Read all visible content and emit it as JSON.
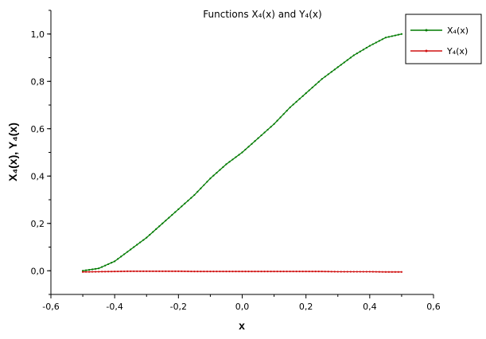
{
  "chart_data": {
    "type": "line",
    "title": "Functions X₄(x) and Y₄(x)",
    "xlabel": "x",
    "ylabel": "X₄(x), Y₄(x)",
    "xlim": [
      -0.6,
      0.6
    ],
    "ylim": [
      -0.1,
      1.1
    ],
    "xticks": [
      -0.6,
      -0.4,
      -0.2,
      0.0,
      0.2,
      0.4,
      0.6
    ],
    "xtick_labels": [
      "-0,6",
      "-0,4",
      "-0,2",
      "0,0",
      "0,2",
      "0,4",
      "0,6"
    ],
    "yticks": [
      0.0,
      0.2,
      0.4,
      0.6,
      0.8,
      1.0
    ],
    "ytick_labels": [
      "0,0",
      "0,2",
      "0,4",
      "0,6",
      "0,8",
      "1,0"
    ],
    "grid": false,
    "legend_position": "top-right",
    "x": [
      -0.5,
      -0.45,
      -0.4,
      -0.35,
      -0.3,
      -0.25,
      -0.2,
      -0.15,
      -0.1,
      -0.05,
      0.0,
      0.05,
      0.1,
      0.15,
      0.2,
      0.25,
      0.3,
      0.35,
      0.4,
      0.45,
      0.5
    ],
    "series": [
      {
        "name": "X₄(x)",
        "color": "#007a00",
        "values": [
          0.0,
          0.01,
          0.04,
          0.09,
          0.14,
          0.2,
          0.26,
          0.32,
          0.39,
          0.45,
          0.5,
          0.56,
          0.62,
          0.69,
          0.75,
          0.81,
          0.86,
          0.91,
          0.95,
          0.985,
          1.0
        ]
      },
      {
        "name": "Y₄(x)",
        "color": "#d01010",
        "values": [
          -0.005,
          -0.004,
          -0.003,
          -0.002,
          -0.002,
          -0.002,
          -0.002,
          -0.003,
          -0.003,
          -0.003,
          -0.003,
          -0.003,
          -0.003,
          -0.003,
          -0.003,
          -0.003,
          -0.004,
          -0.004,
          -0.004,
          -0.005,
          -0.005
        ]
      }
    ]
  }
}
